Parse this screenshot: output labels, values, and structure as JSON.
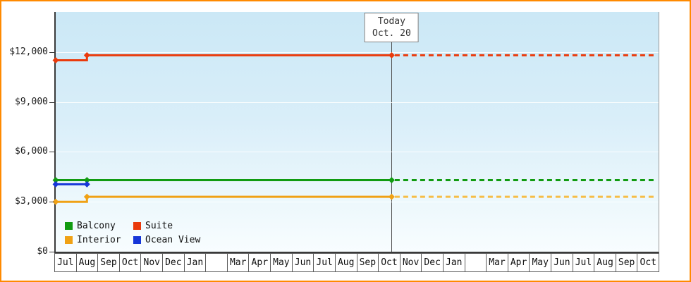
{
  "frame": {
    "border_color": "#ff8a00"
  },
  "today": {
    "label_line1": "Today",
    "label_line2": "Oct. 20",
    "line_color": "#4a4a4a"
  },
  "y_axis": {
    "ticks": [
      {
        "label": "$12,000",
        "value": 12000
      },
      {
        "label": "$9,000",
        "value": 9000
      },
      {
        "label": "$6,000",
        "value": 6000
      },
      {
        "label": "$3,000",
        "value": 3000
      },
      {
        "label": "$0",
        "value": 0
      }
    ]
  },
  "x_axis": {
    "months": [
      "Jul",
      "Aug",
      "Sep",
      "Oct",
      "Nov",
      "Dec",
      "Jan",
      "",
      "Mar",
      "Apr",
      "May",
      "Jun",
      "Jul",
      "Aug",
      "Sep",
      "Oct",
      "Nov",
      "Dec",
      "Jan",
      "",
      "Mar",
      "Apr",
      "May",
      "Jun",
      "Jul",
      "Aug",
      "Sep",
      "Oct"
    ]
  },
  "legend": {
    "items": [
      {
        "label": "Balcony",
        "color": "#119b11"
      },
      {
        "label": "Suite",
        "color": "#ea3a0c"
      },
      {
        "label": "Interior",
        "color": "#f0a115"
      },
      {
        "label": "Ocean View",
        "color": "#1636d8"
      }
    ]
  },
  "chart_data": {
    "type": "line",
    "title": "",
    "today_annotation": "Today Oct. 20",
    "x_unit": "month",
    "x_cells": 28,
    "today_x": 15.6,
    "y_range": [
      0,
      14400
    ],
    "y_gridlines": [
      3000,
      6000,
      9000,
      12000
    ],
    "grid": true,
    "legend_position": "bottom-left",
    "series": [
      {
        "name": "Suite",
        "color": "#ea3a0c",
        "dash_color": "#ea3a0c",
        "path": [
          [
            0,
            11500
          ],
          [
            1.45,
            11500
          ],
          [
            1.45,
            11800
          ],
          [
            15.6,
            11800
          ]
        ],
        "markers": [
          [
            0,
            11500
          ],
          [
            1.45,
            11800
          ],
          [
            15.6,
            11800
          ]
        ],
        "forecast": {
          "from": 15.75,
          "to": 27.92,
          "value": 11800
        }
      },
      {
        "name": "Balcony",
        "color": "#119b11",
        "dash_color": "#119b11",
        "path": [
          [
            0,
            4300
          ],
          [
            15.6,
            4300
          ]
        ],
        "markers": [
          [
            0,
            4300
          ],
          [
            1.45,
            4300
          ],
          [
            15.6,
            4300
          ]
        ],
        "forecast": {
          "from": 15.75,
          "to": 27.92,
          "value": 4300
        }
      },
      {
        "name": "Ocean View",
        "color": "#1636d8",
        "dash_color": "#1636d8",
        "path": [
          [
            0,
            4050
          ],
          [
            1.45,
            4050
          ]
        ],
        "markers": [
          [
            0,
            4050
          ],
          [
            1.45,
            4050
          ]
        ],
        "forecast": null
      },
      {
        "name": "Interior",
        "color": "#f0a115",
        "dash_color": "#f6bd45",
        "path": [
          [
            0,
            3000
          ],
          [
            1.45,
            3000
          ],
          [
            1.45,
            3300
          ],
          [
            15.6,
            3300
          ]
        ],
        "markers": [
          [
            0,
            3000
          ],
          [
            1.45,
            3300
          ],
          [
            15.6,
            3300
          ]
        ],
        "forecast": {
          "from": 15.75,
          "to": 27.92,
          "value": 3300
        }
      }
    ]
  }
}
